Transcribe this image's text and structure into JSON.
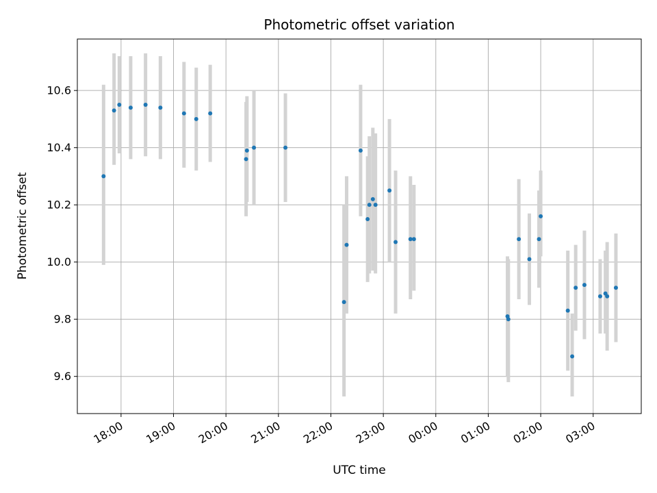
{
  "chart_data": {
    "type": "scatter",
    "title": "Photometric offset variation",
    "xlabel": "UTC time",
    "ylabel": "Photometric offset",
    "x_axis": {
      "kind": "time",
      "start": "17:10",
      "end": "03:55",
      "ticks": [
        "18:00",
        "19:00",
        "20:00",
        "21:00",
        "22:00",
        "23:00",
        "00:00",
        "01:00",
        "02:00",
        "03:00"
      ]
    },
    "y_axis": {
      "min": 9.47,
      "max": 10.78,
      "ticks": [
        "9.6",
        "9.8",
        "10.0",
        "10.2",
        "10.4",
        "10.6"
      ]
    },
    "grid": true,
    "colors": {
      "point": "#1f77b4",
      "errorbar": "#d3d3d3",
      "grid": "#b0b0b0"
    },
    "points": [
      {
        "t": "17:40",
        "y": 10.3,
        "lo": 9.99,
        "hi": 10.62
      },
      {
        "t": "17:52",
        "y": 10.53,
        "lo": 10.34,
        "hi": 10.73
      },
      {
        "t": "17:58",
        "y": 10.55,
        "lo": 10.38,
        "hi": 10.72
      },
      {
        "t": "18:11",
        "y": 10.54,
        "lo": 10.36,
        "hi": 10.72
      },
      {
        "t": "18:28",
        "y": 10.55,
        "lo": 10.37,
        "hi": 10.73
      },
      {
        "t": "18:45",
        "y": 10.54,
        "lo": 10.36,
        "hi": 10.72
      },
      {
        "t": "19:12",
        "y": 10.52,
        "lo": 10.33,
        "hi": 10.7
      },
      {
        "t": "19:26",
        "y": 10.5,
        "lo": 10.32,
        "hi": 10.68
      },
      {
        "t": "19:42",
        "y": 10.52,
        "lo": 10.35,
        "hi": 10.69
      },
      {
        "t": "20:23",
        "y": 10.36,
        "lo": 10.16,
        "hi": 10.56
      },
      {
        "t": "20:24",
        "y": 10.39,
        "lo": 10.21,
        "hi": 10.58
      },
      {
        "t": "20:32",
        "y": 10.4,
        "lo": 10.2,
        "hi": 10.6
      },
      {
        "t": "21:08",
        "y": 10.4,
        "lo": 10.21,
        "hi": 10.59
      },
      {
        "t": "22:15",
        "y": 9.86,
        "lo": 9.53,
        "hi": 10.2
      },
      {
        "t": "22:18",
        "y": 10.06,
        "lo": 9.82,
        "hi": 10.3
      },
      {
        "t": "22:34",
        "y": 10.39,
        "lo": 10.16,
        "hi": 10.62
      },
      {
        "t": "22:42",
        "y": 10.15,
        "lo": 9.93,
        "hi": 10.37
      },
      {
        "t": "22:44",
        "y": 10.2,
        "lo": 9.96,
        "hi": 10.44
      },
      {
        "t": "22:48",
        "y": 10.22,
        "lo": 9.97,
        "hi": 10.47
      },
      {
        "t": "22:51",
        "y": 10.2,
        "lo": 9.96,
        "hi": 10.45
      },
      {
        "t": "23:07",
        "y": 10.25,
        "lo": 10.0,
        "hi": 10.5
      },
      {
        "t": "23:14",
        "y": 10.07,
        "lo": 9.82,
        "hi": 10.32
      },
      {
        "t": "23:31",
        "y": 10.08,
        "lo": 9.87,
        "hi": 10.3
      },
      {
        "t": "23:35",
        "y": 10.08,
        "lo": 9.9,
        "hi": 10.27
      },
      {
        "t": "01:22",
        "y": 9.81,
        "lo": 9.6,
        "hi": 10.02
      },
      {
        "t": "01:23",
        "y": 9.8,
        "lo": 9.58,
        "hi": 10.01
      },
      {
        "t": "01:35",
        "y": 10.08,
        "lo": 9.87,
        "hi": 10.29
      },
      {
        "t": "01:47",
        "y": 10.01,
        "lo": 9.85,
        "hi": 10.17
      },
      {
        "t": "01:58",
        "y": 10.08,
        "lo": 9.91,
        "hi": 10.25
      },
      {
        "t": "02:00",
        "y": 10.16,
        "lo": 10.02,
        "hi": 10.32
      },
      {
        "t": "02:31",
        "y": 9.83,
        "lo": 9.62,
        "hi": 10.04
      },
      {
        "t": "02:36",
        "y": 9.67,
        "lo": 9.53,
        "hi": 9.82
      },
      {
        "t": "02:40",
        "y": 9.91,
        "lo": 9.76,
        "hi": 10.06
      },
      {
        "t": "02:50",
        "y": 9.92,
        "lo": 9.73,
        "hi": 10.11
      },
      {
        "t": "03:08",
        "y": 9.88,
        "lo": 9.75,
        "hi": 10.01
      },
      {
        "t": "03:14",
        "y": 9.89,
        "lo": 9.75,
        "hi": 10.04
      },
      {
        "t": "03:16",
        "y": 9.88,
        "lo": 9.69,
        "hi": 10.07
      },
      {
        "t": "03:26",
        "y": 9.91,
        "lo": 9.72,
        "hi": 10.1
      }
    ]
  }
}
